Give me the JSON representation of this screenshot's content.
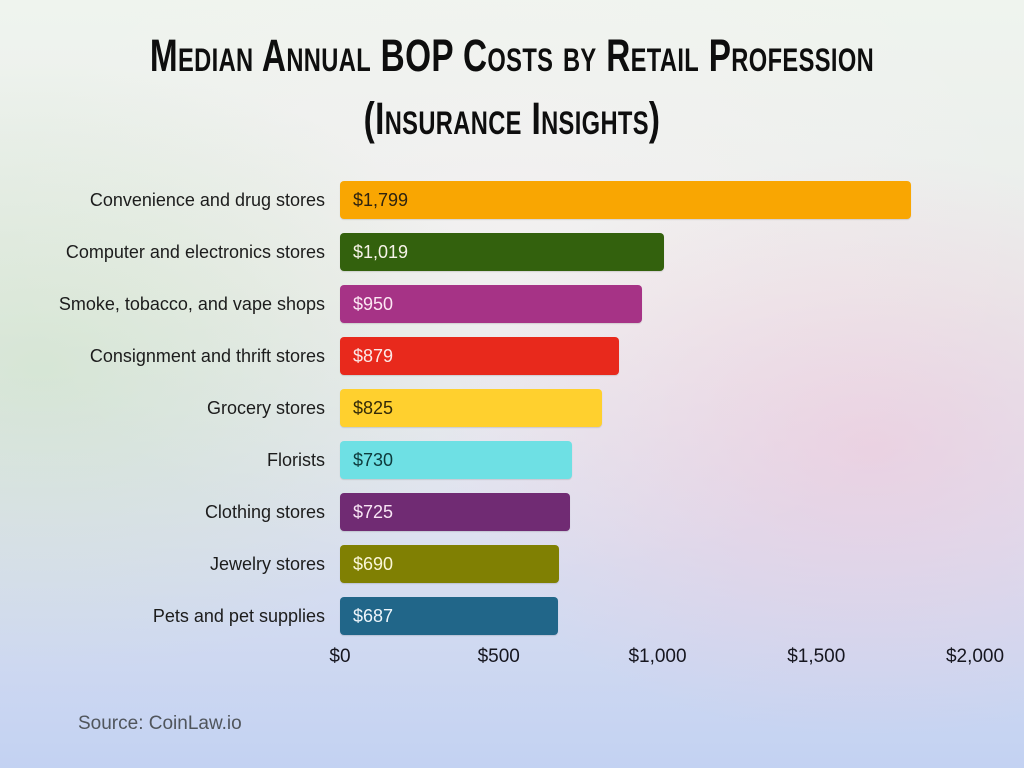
{
  "title": {
    "line1": "Median Annual BOP Costs by Retail Profession",
    "line2": "(Insurance Insights)"
  },
  "source": "Source: CoinLaw.io",
  "chart_data": {
    "type": "bar",
    "orientation": "horizontal",
    "title": "Median Annual BOP Costs by Retail Profession (Insurance Insights)",
    "categories": [
      "Convenience and drug stores",
      "Computer and electronics stores",
      "Smoke, tobacco, and vape shops",
      "Consignment and thrift stores",
      "Grocery stores",
      "Florists",
      "Clothing stores",
      "Jewelry stores",
      "Pets and pet supplies"
    ],
    "values": [
      1799,
      1019,
      950,
      879,
      825,
      730,
      725,
      690,
      687
    ],
    "value_labels": [
      "$1,799",
      "$1,019",
      "$950",
      "$879",
      "$825",
      "$730",
      "$725",
      "$690",
      "$687"
    ],
    "bar_colors": [
      "#F9A602",
      "#33610D",
      "#A63386",
      "#E8291C",
      "#FFD02E",
      "#6EE0E4",
      "#702B73",
      "#808003",
      "#216689"
    ],
    "value_text_colors": [
      "#2e2310",
      "#f7f3e8",
      "#fce8f4",
      "#fde9e7",
      "#332a08",
      "#0d3a3c",
      "#f8e5f5",
      "#fbf7d8",
      "#eef6fb"
    ],
    "xlabel": "",
    "ylabel": "",
    "x_ticks": [
      "$0",
      "$500",
      "$1,000",
      "$1,500",
      "$2,000"
    ],
    "x_tick_values": [
      0,
      500,
      1000,
      1500,
      2000
    ],
    "xlim": [
      0,
      2000
    ],
    "grid": false,
    "legend": false
  }
}
